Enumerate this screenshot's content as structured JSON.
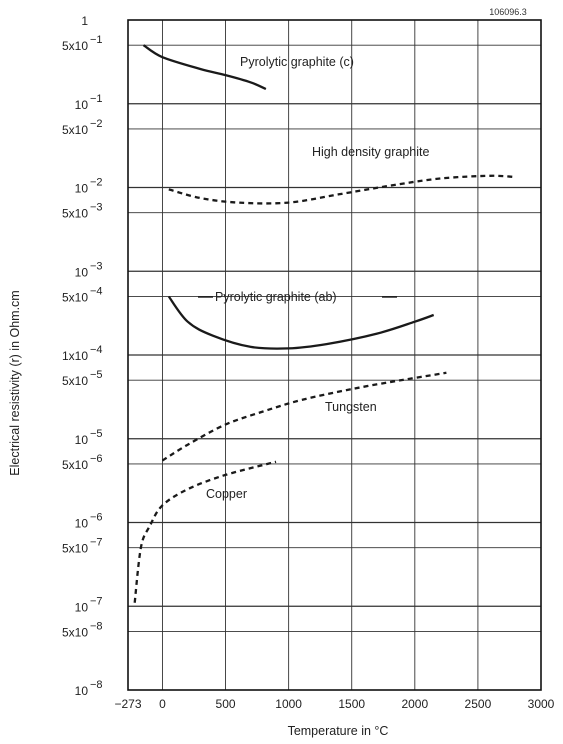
{
  "chart_data": {
    "type": "line",
    "figure_id": "106096.3",
    "xlabel": "Temperature in °C",
    "ylabel": "Electrical resistivity (r) in Ohm.cm",
    "y_scale": "log",
    "xlim": [
      -273,
      3000
    ],
    "ylim": [
      1e-08,
      1
    ],
    "x_ticks": [
      {
        "label": "−273",
        "value": -273
      },
      {
        "label": "0",
        "value": 0
      },
      {
        "label": "500",
        "value": 500
      },
      {
        "label": "1000",
        "value": 1000
      },
      {
        "label": "1500",
        "value": 1500
      },
      {
        "label": "2000",
        "value": 2000
      },
      {
        "label": "2500",
        "value": 2500
      },
      {
        "label": "3000",
        "value": 3000
      }
    ],
    "y_ticks": [
      {
        "value": 1,
        "base": "1",
        "exp": ""
      },
      {
        "value": 0.5,
        "base": "5x10",
        "exp": "−1"
      },
      {
        "value": 0.1,
        "base": "10",
        "exp": "−1"
      },
      {
        "value": 0.05,
        "base": "5x10",
        "exp": "−2"
      },
      {
        "value": 0.01,
        "base": "10",
        "exp": "−2"
      },
      {
        "value": 0.005,
        "base": "5x10",
        "exp": "−3"
      },
      {
        "value": 0.001,
        "base": "10",
        "exp": "−3"
      },
      {
        "value": 0.0005,
        "base": "5x10",
        "exp": "−4"
      },
      {
        "value": 0.0001,
        "base": "1x10",
        "exp": "−4"
      },
      {
        "value": 5e-05,
        "base": "5x10",
        "exp": "−5"
      },
      {
        "value": 1e-05,
        "base": "10",
        "exp": "−5"
      },
      {
        "value": 5e-06,
        "base": "5x10",
        "exp": "−6"
      },
      {
        "value": 1e-06,
        "base": "10",
        "exp": "−6"
      },
      {
        "value": 5e-07,
        "base": "5x10",
        "exp": "−7"
      },
      {
        "value": 1e-07,
        "base": "10",
        "exp": "−7"
      },
      {
        "value": 5e-08,
        "base": "5x10",
        "exp": "−8"
      },
      {
        "value": 1e-08,
        "base": "10",
        "exp": "−8"
      }
    ],
    "grid": true,
    "series": [
      {
        "name": "Pyrolytic graphite (c)",
        "style": "solid",
        "points": [
          [
            -150,
            0.5
          ],
          [
            0,
            0.36
          ],
          [
            300,
            0.26
          ],
          [
            500,
            0.22
          ],
          [
            700,
            0.18
          ],
          [
            820,
            0.15
          ]
        ]
      },
      {
        "name": "High density graphite",
        "style": "dashed",
        "points": [
          [
            50,
            0.0095
          ],
          [
            300,
            0.0075
          ],
          [
            600,
            0.0066
          ],
          [
            1000,
            0.0066
          ],
          [
            1400,
            0.0083
          ],
          [
            1800,
            0.0105
          ],
          [
            2200,
            0.0128
          ],
          [
            2600,
            0.0138
          ],
          [
            2800,
            0.0133
          ]
        ]
      },
      {
        "name": "Pyrolytic graphite (ab)",
        "style": "solid",
        "points": [
          [
            50,
            0.0005
          ],
          [
            200,
            0.00025
          ],
          [
            400,
            0.00017
          ],
          [
            700,
            0.000125
          ],
          [
            1000,
            0.00012
          ],
          [
            1300,
            0.000135
          ],
          [
            1700,
            0.00018
          ],
          [
            2000,
            0.00025
          ],
          [
            2150,
            0.0003
          ]
        ]
      },
      {
        "name": "Tungsten",
        "style": "dashed",
        "points": [
          [
            0,
            5.5e-06
          ],
          [
            200,
            8.5e-06
          ],
          [
            500,
            1.48e-05
          ],
          [
            800,
            2.12e-05
          ],
          [
            1100,
            2.9e-05
          ],
          [
            1500,
            3.92e-05
          ],
          [
            1900,
            5.03e-05
          ],
          [
            2250,
            6.13e-05
          ]
        ]
      },
      {
        "name": "Copper",
        "style": "dashed",
        "points": [
          [
            -220,
            1.1e-07
          ],
          [
            -170,
            5.1e-07
          ],
          [
            -100,
            9.1e-07
          ],
          [
            0,
            1.6e-06
          ],
          [
            200,
            2.5e-06
          ],
          [
            500,
            3.7e-06
          ],
          [
            900,
            5.3e-06
          ]
        ]
      }
    ]
  }
}
